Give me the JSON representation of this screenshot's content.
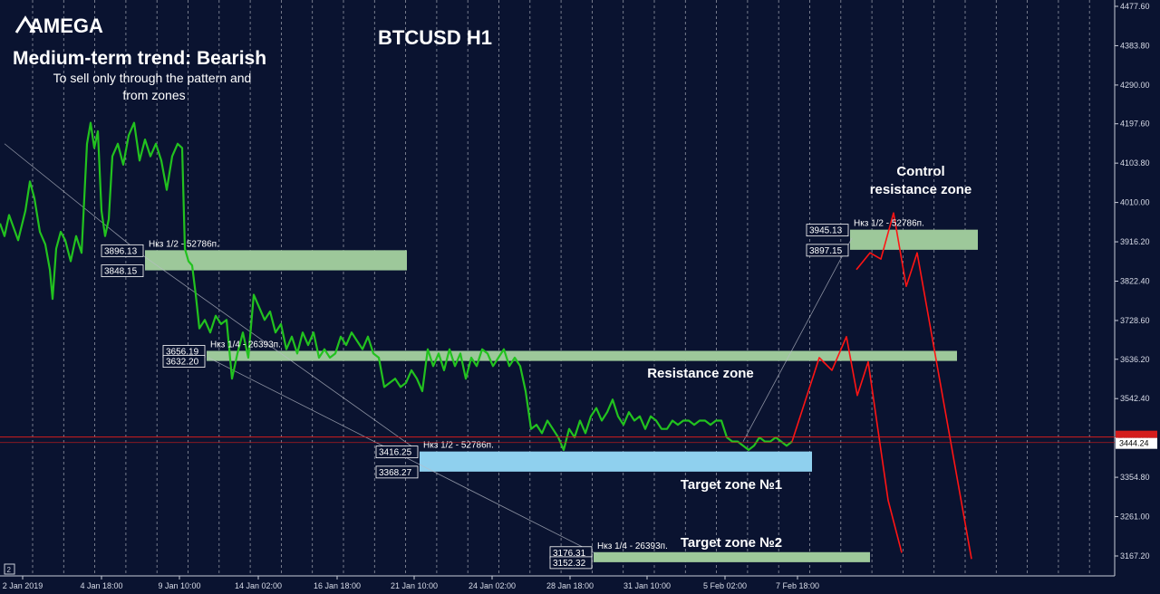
{
  "header": {
    "logo_text": "AMEGA",
    "trend_title": "Medium-term trend: Bearish",
    "trend_note_line1": "To sell only through the pattern and",
    "trend_note_line2": "from zones",
    "symbol_title": "BTCUSD H1"
  },
  "annotations": {
    "control_zone_line1": "Control",
    "control_zone_line2": "resistance zone",
    "resistance_zone": "Resistance zone",
    "target_zone_1": "Target zone №1",
    "target_zone_2": "Target zone №2"
  },
  "colors": {
    "background": "#0a1330",
    "price_line": "#22c21f",
    "forecast_line": "#ff1414",
    "green_zone": "#9dc89a",
    "blue_zone": "#8fd0ee",
    "grid": "#ffffff",
    "current_price_line": "#d41d1d"
  },
  "chart_data": {
    "type": "line",
    "title": "BTCUSD H1",
    "ylim": [
      3120.0,
      4480.0
    ],
    "y_ticks": [
      "4477.60",
      "4383.80",
      "4290.00",
      "4197.60",
      "4103.80",
      "4010.00",
      "3916.20",
      "3822.40",
      "3728.60",
      "3636.20",
      "3542.40",
      "3448.60",
      "3354.80",
      "3261.00",
      "3167.20"
    ],
    "x_ticks": [
      "2 Jan 2019",
      "4 Jan 18:00",
      "9 Jan 10:00",
      "14 Jan 02:00",
      "16 Jan 18:00",
      "21 Jan 10:00",
      "24 Jan 02:00",
      "28 Jan 18:00",
      "31 Jan 10:00",
      "5 Feb 02:00",
      "7 Feb 18:00"
    ],
    "current_price": "3444.24",
    "current_price_value": 3444.24,
    "series": [
      {
        "kind": "price",
        "x": [
          "2 Jan 2019",
          "4 Jan 18:00",
          "9 Jan 10:00",
          "14 Jan 02:00",
          "16 Jan 18:00",
          "21 Jan 10:00",
          "24 Jan 02:00",
          "28 Jan 18:00",
          "31 Jan 10:00",
          "5 Feb 02:00",
          "7 Feb 18:00"
        ],
        "points": [
          [
            0,
            3960
          ],
          [
            5,
            3930
          ],
          [
            10,
            3980
          ],
          [
            20,
            3920
          ],
          [
            28,
            3990
          ],
          [
            33,
            4060
          ],
          [
            38,
            4020
          ],
          [
            44,
            3940
          ],
          [
            50,
            3910
          ],
          [
            55,
            3850
          ],
          [
            58,
            3780
          ],
          [
            62,
            3900
          ],
          [
            67,
            3940
          ],
          [
            72,
            3920
          ],
          [
            78,
            3870
          ],
          [
            84,
            3930
          ],
          [
            90,
            3890
          ],
          [
            96,
            4150
          ],
          [
            100,
            4200
          ],
          [
            104,
            4140
          ],
          [
            108,
            4180
          ],
          [
            112,
            3990
          ],
          [
            116,
            3930
          ],
          [
            120,
            3970
          ],
          [
            124,
            4120
          ],
          [
            130,
            4150
          ],
          [
            136,
            4100
          ],
          [
            142,
            4170
          ],
          [
            148,
            4200
          ],
          [
            154,
            4110
          ],
          [
            160,
            4160
          ],
          [
            166,
            4120
          ],
          [
            172,
            4150
          ],
          [
            178,
            4110
          ],
          [
            184,
            4040
          ],
          [
            190,
            4120
          ],
          [
            196,
            4150
          ],
          [
            201,
            4140
          ],
          [
            204,
            3900
          ],
          [
            208,
            3870
          ],
          [
            212,
            3860
          ],
          [
            216,
            3790
          ],
          [
            220,
            3710
          ],
          [
            226,
            3730
          ],
          [
            232,
            3700
          ],
          [
            238,
            3740
          ],
          [
            244,
            3720
          ],
          [
            250,
            3730
          ],
          [
            256,
            3590
          ],
          [
            262,
            3650
          ],
          [
            268,
            3700
          ],
          [
            274,
            3640
          ],
          [
            280,
            3790
          ],
          [
            286,
            3760
          ],
          [
            292,
            3730
          ],
          [
            298,
            3750
          ],
          [
            304,
            3700
          ],
          [
            310,
            3720
          ],
          [
            316,
            3660
          ],
          [
            322,
            3690
          ],
          [
            328,
            3650
          ],
          [
            334,
            3700
          ],
          [
            340,
            3670
          ],
          [
            346,
            3700
          ],
          [
            352,
            3640
          ],
          [
            358,
            3660
          ],
          [
            364,
            3640
          ],
          [
            370,
            3650
          ],
          [
            376,
            3690
          ],
          [
            382,
            3670
          ],
          [
            388,
            3700
          ],
          [
            394,
            3680
          ],
          [
            400,
            3660
          ],
          [
            406,
            3690
          ],
          [
            412,
            3650
          ],
          [
            418,
            3640
          ],
          [
            424,
            3570
          ],
          [
            430,
            3580
          ],
          [
            436,
            3590
          ],
          [
            442,
            3570
          ],
          [
            448,
            3580
          ],
          [
            454,
            3610
          ],
          [
            460,
            3590
          ],
          [
            466,
            3560
          ],
          [
            472,
            3660
          ],
          [
            478,
            3620
          ],
          [
            484,
            3650
          ],
          [
            490,
            3610
          ],
          [
            496,
            3660
          ],
          [
            502,
            3620
          ],
          [
            508,
            3650
          ],
          [
            514,
            3590
          ],
          [
            520,
            3640
          ],
          [
            526,
            3620
          ],
          [
            532,
            3660
          ],
          [
            538,
            3650
          ],
          [
            544,
            3620
          ],
          [
            550,
            3640
          ],
          [
            556,
            3660
          ],
          [
            562,
            3620
          ],
          [
            568,
            3640
          ],
          [
            574,
            3620
          ],
          [
            580,
            3560
          ],
          [
            586,
            3470
          ],
          [
            592,
            3480
          ],
          [
            598,
            3460
          ],
          [
            604,
            3490
          ],
          [
            610,
            3470
          ],
          [
            616,
            3450
          ],
          [
            622,
            3420
          ],
          [
            628,
            3470
          ],
          [
            634,
            3450
          ],
          [
            640,
            3490
          ],
          [
            646,
            3460
          ],
          [
            652,
            3500
          ],
          [
            658,
            3520
          ],
          [
            664,
            3490
          ],
          [
            670,
            3510
          ],
          [
            676,
            3540
          ],
          [
            682,
            3500
          ],
          [
            688,
            3480
          ],
          [
            694,
            3510
          ],
          [
            700,
            3490
          ],
          [
            706,
            3500
          ],
          [
            712,
            3470
          ],
          [
            718,
            3500
          ],
          [
            724,
            3490
          ],
          [
            730,
            3470
          ],
          [
            736,
            3470
          ],
          [
            742,
            3490
          ],
          [
            748,
            3480
          ],
          [
            754,
            3490
          ],
          [
            760,
            3490
          ],
          [
            766,
            3480
          ],
          [
            772,
            3490
          ],
          [
            778,
            3490
          ],
          [
            784,
            3480
          ],
          [
            790,
            3490
          ],
          [
            796,
            3490
          ],
          [
            802,
            3450
          ],
          [
            808,
            3440
          ],
          [
            814,
            3440
          ],
          [
            820,
            3430
          ],
          [
            826,
            3420
          ],
          [
            832,
            3430
          ],
          [
            838,
            3450
          ],
          [
            844,
            3440
          ],
          [
            850,
            3440
          ],
          [
            856,
            3450
          ],
          [
            862,
            3440
          ],
          [
            868,
            3430
          ],
          [
            874,
            3440
          ]
        ]
      },
      {
        "kind": "forecast",
        "points": [
          [
            874,
            3440
          ],
          [
            904,
            3640
          ],
          [
            918,
            3610
          ],
          [
            934,
            3690
          ],
          [
            946,
            3550
          ],
          [
            958,
            3630
          ],
          [
            980,
            3300
          ],
          [
            995,
            3175
          ]
        ]
      },
      {
        "kind": "forecast",
        "points": [
          [
            945,
            3850
          ],
          [
            960,
            3890
          ],
          [
            972,
            3875
          ],
          [
            986,
            3985
          ],
          [
            1000,
            3810
          ],
          [
            1012,
            3890
          ],
          [
            1072,
            3160
          ]
        ]
      }
    ],
    "trend_lines": [
      {
        "from": [
          5,
          4150
        ],
        "to": [
          160,
          3880
        ]
      },
      {
        "from": [
          160,
          3880
        ],
        "to": [
          460,
          3420
        ]
      },
      {
        "from": [
          230,
          3640
        ],
        "to": [
          660,
          3170
        ]
      },
      {
        "from": [
          820,
          3440
        ],
        "to": [
          940,
          3925
        ]
      }
    ],
    "zones": [
      {
        "color": "green",
        "x_range": [
          160,
          449
        ],
        "y_range": [
          3848.15,
          3896.13
        ],
        "upper": "3896.13",
        "lower": "3848.15",
        "label": "Нкз 1/2 - 52786п."
      },
      {
        "color": "green",
        "x_range": [
          228,
          1056
        ],
        "y_range": [
          3632.2,
          3656.19
        ],
        "upper": "3656.19",
        "lower": "3632.20",
        "label": "Нкз 1/4 - 26393п."
      },
      {
        "color": "blue",
        "x_range": [
          463,
          896
        ],
        "y_range": [
          3368.27,
          3416.25
        ],
        "upper": "3416.25",
        "lower": "3368.27",
        "label": "Нкз 1/2 - 52786п."
      },
      {
        "color": "green",
        "x_range": [
          655,
          960
        ],
        "y_range": [
          3152.32,
          3176.31
        ],
        "upper": "3176.31",
        "lower": "3152.32",
        "label": "Нкз 1/4 - 26393п."
      },
      {
        "color": "green",
        "x_range": [
          938,
          1079
        ],
        "y_range": [
          3897.15,
          3945.13
        ],
        "upper": "3945.13",
        "lower": "3897.15",
        "label": "Нкз 1/2 - 52786п."
      }
    ]
  }
}
